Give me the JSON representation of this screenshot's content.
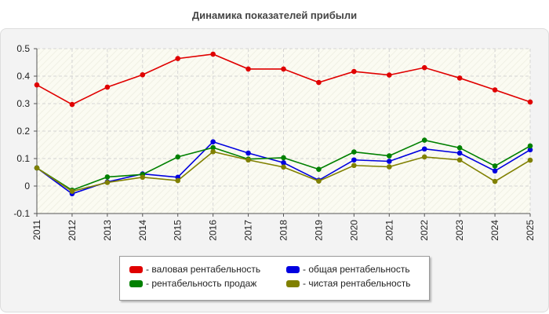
{
  "chart_data": {
    "type": "line",
    "title": "Динамика показателей прибыли",
    "xlabel": "",
    "ylabel": "",
    "categories": [
      "2011",
      "2012",
      "2013",
      "2014",
      "2015",
      "2016",
      "2017",
      "2018",
      "2019",
      "2020",
      "2021",
      "2022",
      "2023",
      "2024",
      "2025"
    ],
    "ylim": [
      -0.1,
      0.5
    ],
    "yticks": [
      "-0.1",
      "0",
      "0.1",
      "0.2",
      "0.3",
      "0.4",
      "0.5"
    ],
    "grid": true,
    "legend_position": "bottom",
    "series": [
      {
        "name": "- валовая рентабельность",
        "color": "#e00000",
        "values": [
          0.368,
          0.297,
          0.36,
          0.405,
          0.464,
          0.48,
          0.426,
          0.426,
          0.377,
          0.417,
          0.404,
          0.431,
          0.393,
          0.35,
          0.306
        ]
      },
      {
        "name": "- общая рентабельность",
        "color": "#0000e0",
        "values": [
          0.066,
          -0.028,
          0.015,
          0.044,
          0.032,
          0.161,
          0.12,
          0.085,
          0.021,
          0.095,
          0.09,
          0.135,
          0.12,
          0.055,
          0.132
        ]
      },
      {
        "name": "- рентабельность продаж",
        "color": "#008000",
        "values": [
          0.066,
          -0.015,
          0.033,
          0.042,
          0.106,
          0.14,
          0.098,
          0.103,
          0.061,
          0.124,
          0.11,
          0.167,
          0.139,
          0.073,
          0.146
        ]
      },
      {
        "name": "- чистая рентабельность",
        "color": "#808000",
        "values": [
          0.066,
          -0.019,
          0.013,
          0.032,
          0.02,
          0.125,
          0.095,
          0.069,
          0.018,
          0.075,
          0.07,
          0.106,
          0.095,
          0.017,
          0.094
        ]
      }
    ]
  }
}
